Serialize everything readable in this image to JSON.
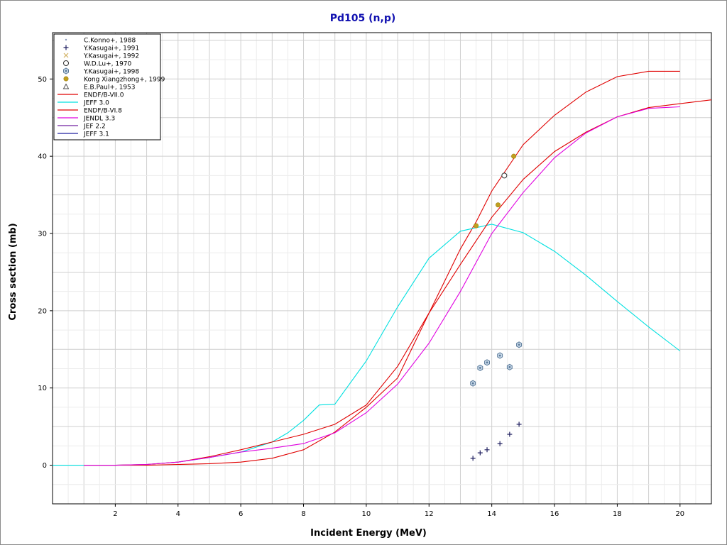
{
  "chart_data": {
    "type": "line",
    "title": "Pd105 (n,p)",
    "xlabel": "Incident Energy (MeV)",
    "ylabel": "Cross section (mb)",
    "xlim": [
      0,
      21
    ],
    "ylim": [
      -5,
      56
    ],
    "xticks": [
      2,
      4,
      6,
      8,
      10,
      12,
      14,
      16,
      18,
      20
    ],
    "yticks": [
      0,
      10,
      20,
      30,
      40,
      50
    ],
    "grid": true,
    "legend_position": "top-left",
    "experimental": [
      {
        "name": "C.Konno+, 1988",
        "marker": "dot",
        "color": "#8899bb",
        "points": []
      },
      {
        "name": "Y.Kasugai+, 1991",
        "marker": "plus",
        "color": "#202060",
        "points": [
          [
            13.4,
            0.9
          ],
          [
            13.63,
            1.6
          ],
          [
            13.85,
            2.0
          ],
          [
            14.26,
            2.8
          ],
          [
            14.57,
            4.0
          ],
          [
            14.87,
            5.3
          ]
        ]
      },
      {
        "name": "Y.Kasugai+, 1992",
        "marker": "cross",
        "color": "#d0b060",
        "points": []
      },
      {
        "name": "W.D.Lu+, 1970",
        "marker": "circle",
        "color": "#303030",
        "points": [
          [
            14.4,
            37.5
          ]
        ]
      },
      {
        "name": "Y.Kasugai+, 1998",
        "marker": "hexagon",
        "color": "#5a7a9a",
        "points": [
          [
            13.4,
            10.6
          ],
          [
            13.63,
            12.6
          ],
          [
            13.85,
            13.3
          ],
          [
            14.26,
            14.2
          ],
          [
            14.57,
            12.7
          ],
          [
            14.87,
            15.6
          ]
        ]
      },
      {
        "name": "Kong Xiangzhong+, 1999",
        "marker": "filled-circle",
        "color": "#c0a020",
        "points": [
          [
            13.5,
            31.0
          ],
          [
            14.2,
            33.7
          ],
          [
            14.7,
            40.0
          ]
        ]
      },
      {
        "name": "E.B.Paul+, 1953",
        "marker": "triangle",
        "color": "#505050",
        "points": []
      }
    ],
    "series": [
      {
        "name": "ENDF/B-VII.0",
        "color": "#e00000",
        "points": [
          [
            1,
            0
          ],
          [
            2,
            0
          ],
          [
            3,
            0
          ],
          [
            4,
            0.1
          ],
          [
            5,
            0.2
          ],
          [
            6,
            0.4
          ],
          [
            7,
            0.9
          ],
          [
            8,
            2.0
          ],
          [
            9,
            4.3
          ],
          [
            10,
            7.5
          ],
          [
            11,
            11.3
          ],
          [
            12,
            19.7
          ],
          [
            13,
            28.0
          ],
          [
            13.5,
            31.5
          ],
          [
            14,
            35.5
          ],
          [
            14.5,
            38.5
          ],
          [
            15,
            41.5
          ],
          [
            16,
            45.3
          ],
          [
            17,
            48.3
          ],
          [
            18,
            50.3
          ],
          [
            19,
            51.0
          ],
          [
            20,
            51.0
          ]
        ]
      },
      {
        "name": "JEFF 3.0",
        "color": "#00e0e0",
        "points": [
          [
            0,
            0
          ],
          [
            1,
            0
          ],
          [
            2,
            0
          ],
          [
            3,
            0.1
          ],
          [
            4,
            0.4
          ],
          [
            5,
            1.0
          ],
          [
            6,
            1.7
          ],
          [
            7,
            3.0
          ],
          [
            7.5,
            4.2
          ],
          [
            8,
            5.8
          ],
          [
            8.5,
            7.8
          ],
          [
            9,
            7.9
          ],
          [
            10,
            13.5
          ],
          [
            11,
            20.5
          ],
          [
            12,
            26.8
          ],
          [
            13,
            30.3
          ],
          [
            14,
            31.2
          ],
          [
            15,
            30.1
          ],
          [
            16,
            27.7
          ],
          [
            17,
            24.6
          ],
          [
            18,
            21.2
          ],
          [
            19,
            17.9
          ],
          [
            20,
            14.8
          ]
        ]
      },
      {
        "name": "ENDF/B-VI.8",
        "color": "#e00000",
        "points": [
          [
            1,
            0
          ],
          [
            2,
            0
          ],
          [
            3,
            0.1
          ],
          [
            4,
            0.4
          ],
          [
            5,
            1.1
          ],
          [
            6,
            2.0
          ],
          [
            7,
            3.0
          ],
          [
            8,
            4.0
          ],
          [
            9,
            5.3
          ],
          [
            10,
            7.8
          ],
          [
            11,
            12.8
          ],
          [
            12,
            19.7
          ],
          [
            13,
            26.0
          ],
          [
            14,
            32.1
          ],
          [
            15,
            37.0
          ],
          [
            16,
            40.6
          ],
          [
            17,
            43.1
          ],
          [
            18,
            45.1
          ],
          [
            19,
            46.3
          ],
          [
            20,
            46.8
          ],
          [
            21,
            47.3
          ]
        ]
      },
      {
        "name": "JENDL 3.3",
        "color": "#e000e0",
        "points": [
          [
            1,
            0
          ],
          [
            2,
            0
          ],
          [
            3,
            0.1
          ],
          [
            4,
            0.4
          ],
          [
            5,
            1.0
          ],
          [
            6,
            1.7
          ],
          [
            7,
            2.2
          ],
          [
            8,
            2.8
          ],
          [
            9,
            4.2
          ],
          [
            10,
            6.8
          ],
          [
            11,
            10.5
          ],
          [
            12,
            15.8
          ],
          [
            13,
            22.5
          ],
          [
            14,
            30.0
          ],
          [
            15,
            35.3
          ],
          [
            16,
            39.8
          ],
          [
            17,
            43.0
          ],
          [
            18,
            45.1
          ],
          [
            19,
            46.2
          ],
          [
            20,
            46.4
          ]
        ]
      },
      {
        "name": "JEF 2.2",
        "color": "#7020a0",
        "points": []
      },
      {
        "name": "JEFF 3.1",
        "color": "#2020a0",
        "points": []
      }
    ]
  }
}
